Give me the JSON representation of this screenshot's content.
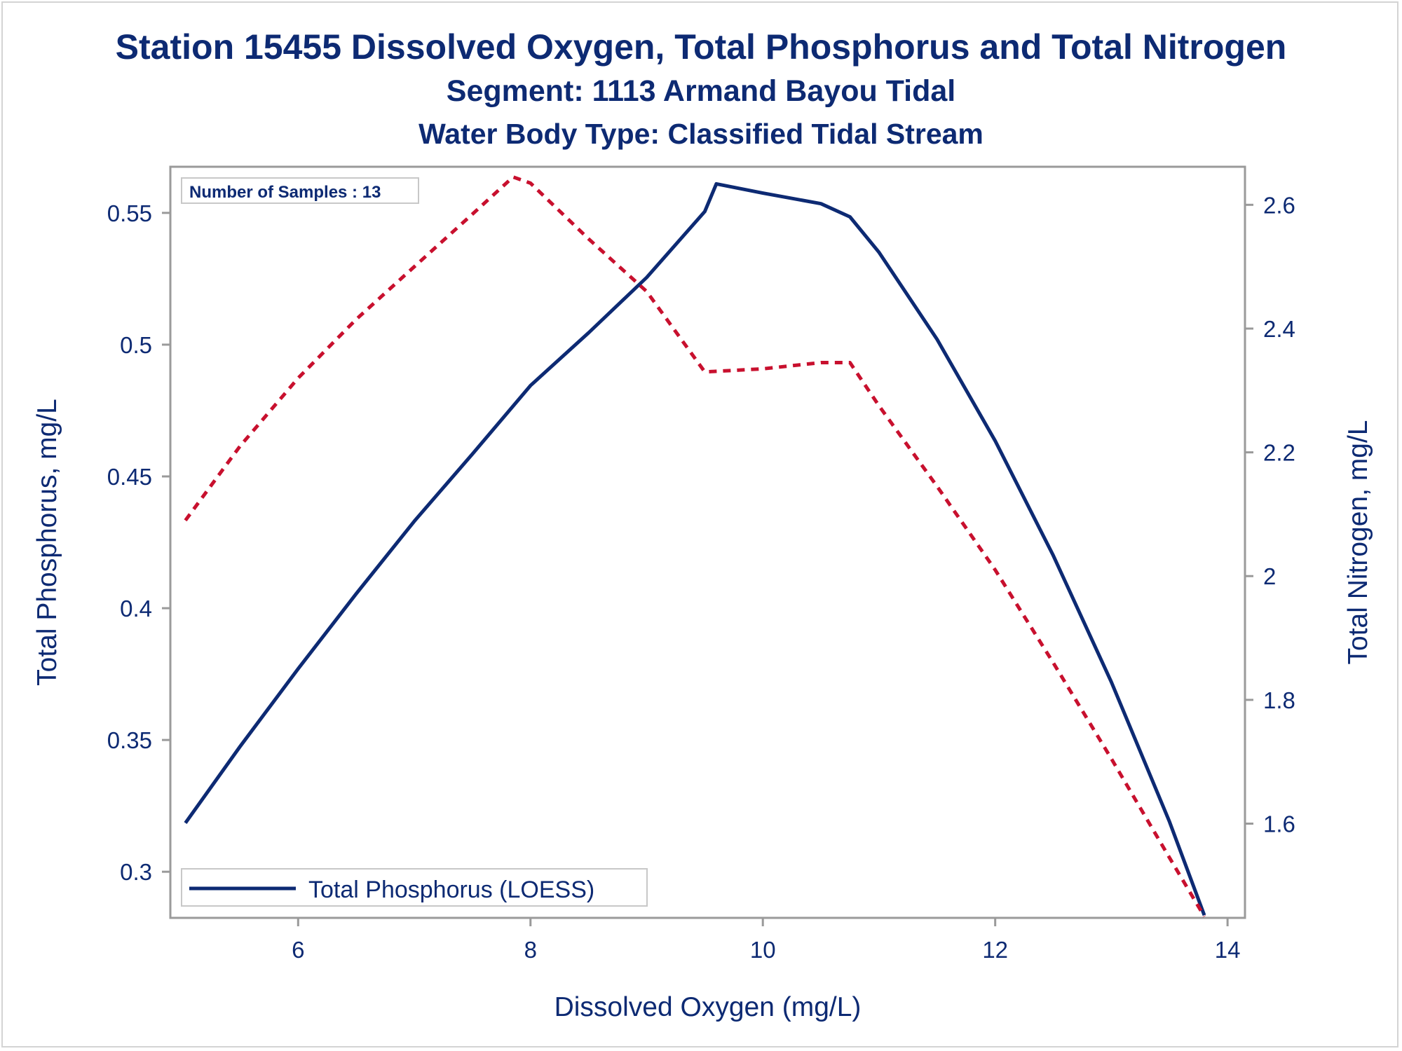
{
  "chart_data": {
    "type": "line",
    "title": "Station 15455  Dissolved Oxygen, Total Phosphorus and Total Nitrogen",
    "subtitle": "Segment: 1113  Armand Bayou Tidal",
    "subtitle2": "Water Body Type: Classified Tidal Stream",
    "annotation": "Number of Samples : 13",
    "xlabel": "Dissolved Oxygen (mg/L)",
    "ylabel_left": "Total Phosphorus, mg/L",
    "ylabel_right": "Total Nitrogen, mg/L",
    "xlim": [
      4.9,
      14.15
    ],
    "ylim_left": [
      0.2825,
      0.5675
    ],
    "ylim_right": [
      1.4477,
      2.6615
    ],
    "x_ticks": [
      6,
      8,
      10,
      12,
      14
    ],
    "y_left_ticks": [
      0.3,
      0.35,
      0.4,
      0.45,
      0.5,
      0.55
    ],
    "y_right_ticks": [
      1.6,
      1.8,
      2,
      2.2,
      2.4,
      2.6
    ],
    "x_tick_labels": [
      "6",
      "8",
      "10",
      "12",
      "14"
    ],
    "y_left_tick_labels": [
      "0.3",
      "0.35",
      "0.4",
      "0.45",
      "0.5",
      "0.55"
    ],
    "y_right_tick_labels": [
      "1.6",
      "1.8",
      "2",
      "2.2",
      "2.4",
      "2.6"
    ],
    "grid": false,
    "legend_position": "bottom-left",
    "series": [
      {
        "name": "Total Phosphorus (LOESS)",
        "axis": "left",
        "color": "#0d2a73",
        "style": "solid",
        "x": [
          5.03,
          5.5,
          6.0,
          6.5,
          7.0,
          7.5,
          8.0,
          8.5,
          9.0,
          9.5,
          9.6,
          10.0,
          10.5,
          10.75,
          11.0,
          11.5,
          12.0,
          12.5,
          13.0,
          13.5,
          13.8
        ],
        "y": [
          0.3185,
          0.3475,
          0.377,
          0.4055,
          0.433,
          0.4585,
          0.4845,
          0.5045,
          0.5255,
          0.5505,
          0.561,
          0.5575,
          0.5535,
          0.5485,
          0.535,
          0.502,
          0.4635,
          0.42,
          0.372,
          0.319,
          0.2835
        ]
      },
      {
        "name": "",
        "axis": "right",
        "color": "#c8102e",
        "style": "dashed",
        "x": [
          5.03,
          5.5,
          6.0,
          6.5,
          7.0,
          7.5,
          7.85,
          8.0,
          8.5,
          9.0,
          9.5,
          10.0,
          10.5,
          10.75,
          11.0,
          11.5,
          12.0,
          12.5,
          13.0,
          13.5,
          13.8
        ],
        "y": [
          2.09,
          2.21,
          2.32,
          2.415,
          2.5,
          2.585,
          2.645,
          2.635,
          2.545,
          2.46,
          2.33,
          2.335,
          2.345,
          2.345,
          2.275,
          2.145,
          2.01,
          1.86,
          1.705,
          1.545,
          1.45
        ]
      }
    ]
  }
}
